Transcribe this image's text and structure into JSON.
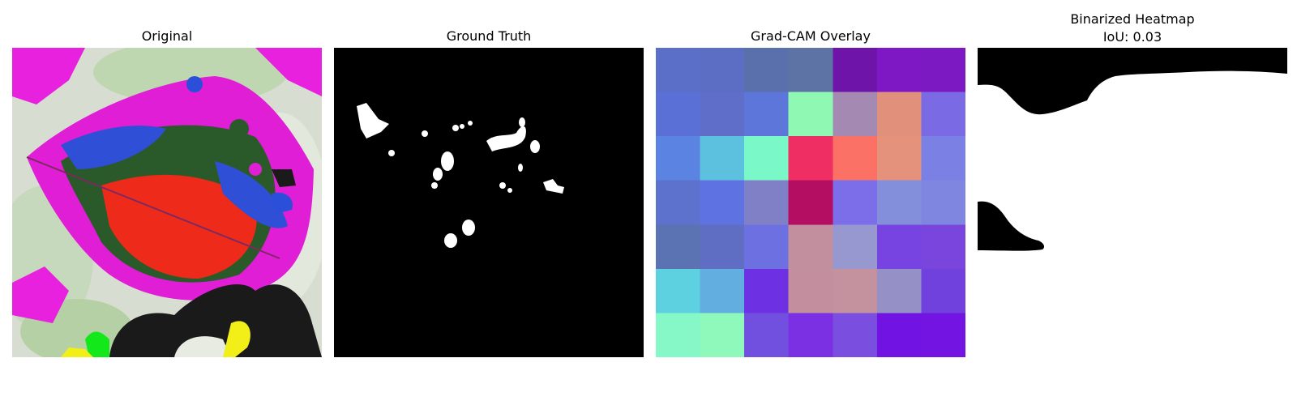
{
  "panels": [
    {
      "title": "Original"
    },
    {
      "title": "Ground Truth"
    },
    {
      "title": "Grad-CAM Overlay"
    },
    {
      "title_line1": "Binarized Heatmap",
      "title_line2": "IoU: 0.03"
    }
  ],
  "gradcam_grid": [
    [
      "#5b6fc9",
      "#5c6ec4",
      "#5a70ac",
      "#5d73a6",
      "#6e14a8",
      "#7e17c4",
      "#7d19c2"
    ],
    [
      "#5a70d6",
      "#5e6ec9",
      "#5d76da",
      "#8ff9b4",
      "#a48ab3",
      "#e0907b",
      "#7a6ae4"
    ],
    [
      "#5b83e2",
      "#5bc1df",
      "#7af8c8",
      "#ef2f63",
      "#fb7166",
      "#e5927c",
      "#7b80e4"
    ],
    [
      "#5d72cc",
      "#5f72e2",
      "#8080c6",
      "#b40e63",
      "#7c6ee8",
      "#838fdb",
      "#7e86e0"
    ],
    [
      "#5b73b2",
      "#5f6dc3",
      "#6c70e0",
      "#c18f9d",
      "#9798cf",
      "#7744e2",
      "#7a45dd"
    ],
    [
      "#5ed1e1",
      "#63aee0",
      "#6d30e2",
      "#c38f9e",
      "#c4919e",
      "#9591c6",
      "#7141de"
    ],
    [
      "#86f7c6",
      "#8ff9bb",
      "#7150e0",
      "#7b30e4",
      "#7a4fe0",
      "#7113e2",
      "#7414e2"
    ]
  ]
}
